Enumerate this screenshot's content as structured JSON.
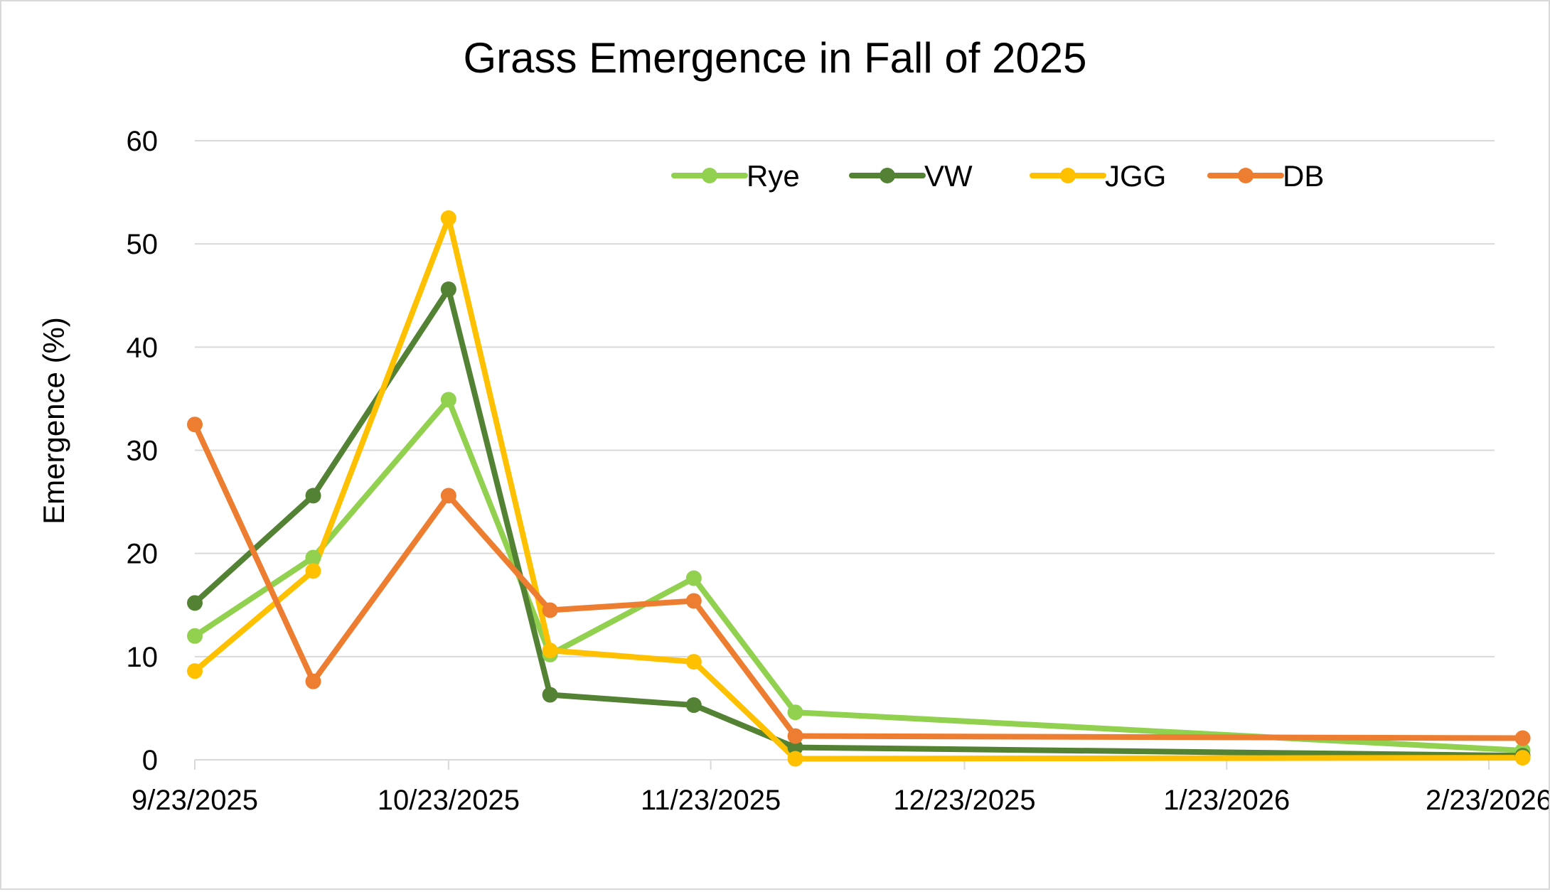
{
  "chart_data": {
    "type": "line",
    "title": "Grass Emergence in Fall of 2025",
    "xlabel": "",
    "ylabel": "Emergence (%)",
    "ylim": [
      0,
      60
    ],
    "yticks": [
      0,
      10,
      20,
      30,
      40,
      50,
      60
    ],
    "xlim": [
      "9/23/2025",
      "2/23/2026"
    ],
    "xticks": [
      "9/23/2025",
      "10/23/2025",
      "11/23/2025",
      "12/23/2025",
      "1/23/2026",
      "2/23/2026"
    ],
    "grid": "horizontal",
    "legend_position": "top-right",
    "x": [
      "9/23/2025",
      "10/7/2025",
      "10/23/2025",
      "11/4/2025",
      "11/21/2025",
      "12/3/2025",
      "2/27/2026"
    ],
    "series": [
      {
        "name": "Rye",
        "color": "#92d050",
        "values": [
          12.0,
          19.6,
          34.9,
          10.2,
          17.6,
          4.6,
          0.9
        ]
      },
      {
        "name": "VW",
        "color": "#548235",
        "values": [
          15.2,
          25.6,
          45.6,
          6.3,
          5.3,
          1.2,
          0.4
        ]
      },
      {
        "name": "JGG",
        "color": "#ffc000",
        "values": [
          8.6,
          18.3,
          52.5,
          10.6,
          9.5,
          0.1,
          0.2
        ]
      },
      {
        "name": "DB",
        "color": "#ed7d31",
        "values": [
          32.5,
          7.6,
          25.6,
          14.5,
          15.4,
          2.3,
          2.1
        ]
      }
    ]
  }
}
